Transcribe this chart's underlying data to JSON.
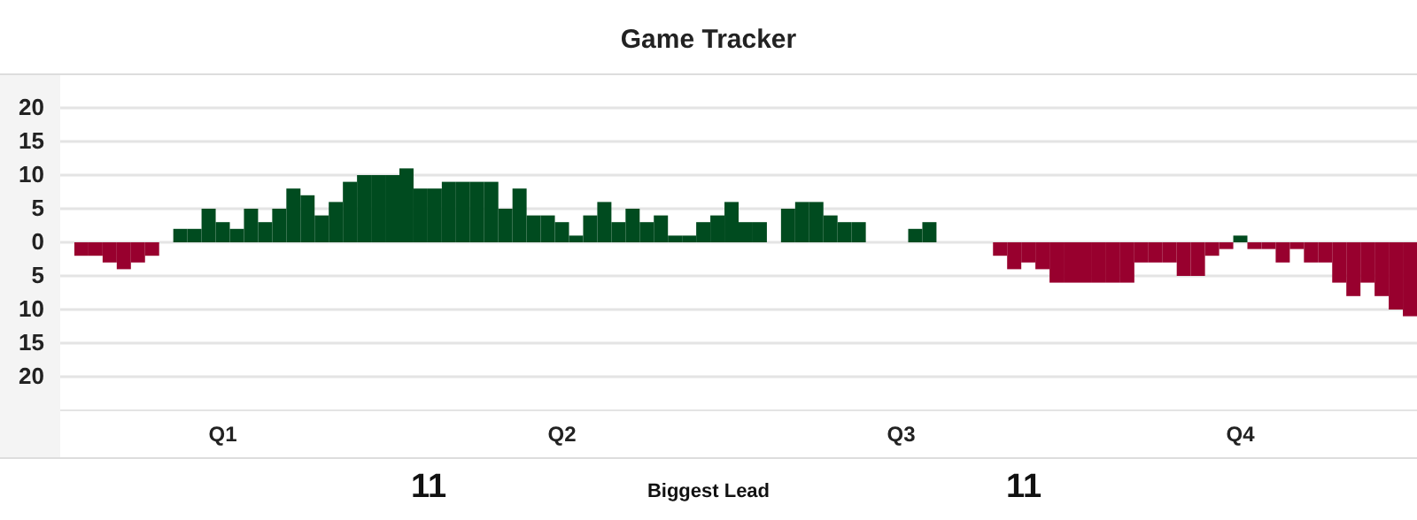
{
  "chart_data": {
    "type": "bar",
    "title": "Game Tracker",
    "grid": "y",
    "categories": [
      null,
      null,
      null,
      null,
      null,
      null,
      null,
      null,
      null,
      null,
      null,
      "Q1",
      null,
      null,
      null,
      null,
      null,
      null,
      null,
      null,
      null,
      null,
      null,
      null,
      null,
      null,
      null,
      null,
      null,
      null,
      null,
      null,
      null,
      null,
      null,
      "Q2",
      null,
      null,
      null,
      null,
      null,
      null,
      null,
      null,
      null,
      null,
      null,
      null,
      null,
      null,
      null,
      null,
      null,
      null,
      null,
      null,
      null,
      null,
      null,
      "Q3",
      null,
      null,
      null,
      null,
      null,
      null,
      null,
      null,
      null,
      null,
      null,
      null,
      null,
      null,
      null,
      null,
      null,
      null,
      null,
      null,
      null,
      null,
      null,
      "Q4",
      null,
      null,
      null,
      null,
      null,
      null,
      null,
      null,
      null,
      null,
      null,
      null
    ],
    "ylim": [
      -25,
      25
    ],
    "yticks": [
      20,
      15,
      10,
      5,
      0,
      {
        "value": -5,
        "label": "5"
      },
      {
        "value": -10,
        "label": "10"
      },
      {
        "value": -15,
        "label": "15"
      },
      {
        "value": -20,
        "label": "20"
      }
    ],
    "series": [
      {
        "color": "#004b1f",
        "values": [
          null,
          null,
          null,
          null,
          null,
          null,
          null,
          null,
          2,
          2,
          5,
          3,
          2,
          5,
          3,
          5,
          8,
          7,
          4,
          6,
          9,
          10,
          10,
          10,
          11,
          8,
          8,
          9,
          9,
          9,
          9,
          5,
          8,
          4,
          4,
          3,
          1,
          4,
          6,
          3,
          5,
          3,
          4,
          1,
          1,
          3,
          4,
          6,
          3,
          3,
          null,
          5,
          6,
          6,
          4,
          3,
          3,
          null,
          null,
          null,
          2,
          3,
          null,
          null,
          null,
          null,
          null,
          null,
          null,
          null,
          null,
          null,
          null,
          null,
          null,
          null,
          null,
          null,
          null,
          null,
          null,
          null,
          null,
          1,
          null,
          null,
          null,
          null,
          null,
          null,
          null,
          null,
          null,
          null,
          null,
          null
        ]
      },
      {
        "color": "#98002e",
        "values": [
          null,
          -2,
          -2,
          -3,
          -4,
          -3,
          -2,
          null,
          null,
          null,
          null,
          null,
          null,
          null,
          null,
          null,
          null,
          null,
          null,
          null,
          null,
          null,
          null,
          null,
          null,
          null,
          null,
          null,
          null,
          null,
          null,
          null,
          null,
          null,
          null,
          null,
          null,
          null,
          null,
          null,
          null,
          null,
          null,
          null,
          null,
          null,
          null,
          null,
          null,
          null,
          null,
          null,
          null,
          null,
          null,
          null,
          null,
          null,
          null,
          null,
          null,
          null,
          null,
          null,
          null,
          null,
          -2,
          -4,
          -3,
          -4,
          -6,
          -6,
          -6,
          -6,
          -6,
          -6,
          -3,
          -3,
          -3,
          -5,
          -5,
          -2,
          -1,
          null,
          -1,
          -1,
          -3,
          -1,
          -3,
          -3,
          -6,
          -8,
          -6,
          -8,
          -10,
          -11
        ]
      }
    ],
    "annotations": [
      "11",
      "Biggest Lead",
      "11"
    ]
  }
}
